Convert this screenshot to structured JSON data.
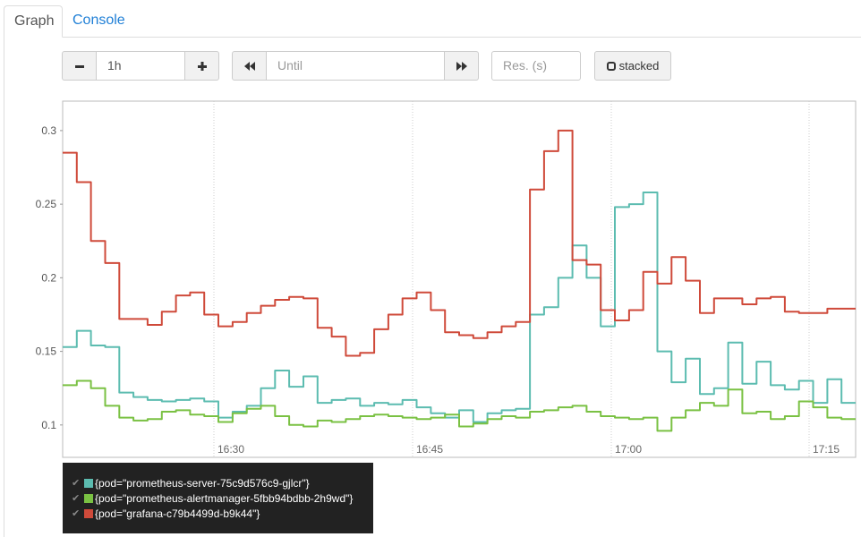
{
  "tabs": [
    {
      "label": "Graph",
      "active": true
    },
    {
      "label": "Console",
      "active": false
    }
  ],
  "controls": {
    "range_minus_icon": "minus-icon",
    "range_value": "1h",
    "range_plus_icon": "plus-icon",
    "back_icon": "fast-backward-icon",
    "until_placeholder": "Until",
    "forward_icon": "fast-forward-icon",
    "resolution_placeholder": "Res. (s)",
    "stacked_label": "stacked"
  },
  "chart_data": {
    "type": "line",
    "xlabel": "",
    "ylabel": "",
    "x_ticks": [
      "16:30",
      "16:45",
      "17:00",
      "17:15"
    ],
    "y_ticks": [
      "0.1",
      "0.15",
      "0.2",
      "0.25",
      "0.3"
    ],
    "ylim": [
      0.078,
      0.32
    ],
    "grid": true,
    "series": [
      {
        "name": "{pod=\"prometheus-server-75c9d576c9-gjlcr\"}",
        "color": "#5cbcb0",
        "values": [
          0.153,
          0.164,
          0.154,
          0.153,
          0.122,
          0.119,
          0.117,
          0.116,
          0.117,
          0.118,
          0.116,
          0.105,
          0.109,
          0.113,
          0.125,
          0.137,
          0.126,
          0.133,
          0.115,
          0.117,
          0.118,
          0.113,
          0.115,
          0.114,
          0.117,
          0.112,
          0.108,
          0.105,
          0.11,
          0.102,
          0.108,
          0.11,
          0.111,
          0.175,
          0.18,
          0.2,
          0.222,
          0.2,
          0.167,
          0.248,
          0.25,
          0.258,
          0.15,
          0.129,
          0.145,
          0.121,
          0.125,
          0.156,
          0.128,
          0.143,
          0.127,
          0.124,
          0.13,
          0.115,
          0.131,
          0.115
        ]
      },
      {
        "name": "{pod=\"prometheus-alertmanager-5fbb94bdbb-2h9wd\"}",
        "color": "#7ac143",
        "values": [
          0.127,
          0.13,
          0.125,
          0.113,
          0.105,
          0.103,
          0.104,
          0.109,
          0.11,
          0.107,
          0.106,
          0.102,
          0.108,
          0.111,
          0.113,
          0.106,
          0.1,
          0.099,
          0.103,
          0.102,
          0.104,
          0.106,
          0.107,
          0.106,
          0.105,
          0.104,
          0.105,
          0.107,
          0.099,
          0.101,
          0.104,
          0.106,
          0.105,
          0.109,
          0.11,
          0.112,
          0.113,
          0.109,
          0.106,
          0.105,
          0.104,
          0.105,
          0.096,
          0.105,
          0.11,
          0.115,
          0.113,
          0.124,
          0.108,
          0.109,
          0.104,
          0.106,
          0.116,
          0.112,
          0.105,
          0.104
        ]
      },
      {
        "name": "{pod=\"grafana-c79b4499d-b9k44\"}",
        "color": "#cf4a3a",
        "values": [
          0.285,
          0.265,
          0.225,
          0.21,
          0.172,
          0.172,
          0.168,
          0.177,
          0.188,
          0.19,
          0.175,
          0.167,
          0.17,
          0.176,
          0.181,
          0.185,
          0.187,
          0.186,
          0.166,
          0.16,
          0.147,
          0.149,
          0.165,
          0.175,
          0.186,
          0.19,
          0.178,
          0.163,
          0.161,
          0.159,
          0.163,
          0.167,
          0.17,
          0.26,
          0.286,
          0.3,
          0.212,
          0.209,
          0.178,
          0.171,
          0.178,
          0.204,
          0.196,
          0.214,
          0.198,
          0.176,
          0.186,
          0.186,
          0.182,
          0.186,
          0.187,
          0.177,
          0.176,
          0.176,
          0.179,
          0.179
        ]
      }
    ]
  },
  "legend": {
    "check_glyph": "✔",
    "items": [
      {
        "label": "{pod=\"prometheus-server-75c9d576c9-gjlcr\"}",
        "color": "#5cbcb0"
      },
      {
        "label": "{pod=\"prometheus-alertmanager-5fbb94bdbb-2h9wd\"}",
        "color": "#7ac143"
      },
      {
        "label": "{pod=\"grafana-c79b4499d-b9k44\"}",
        "color": "#cf4a3a"
      }
    ]
  }
}
